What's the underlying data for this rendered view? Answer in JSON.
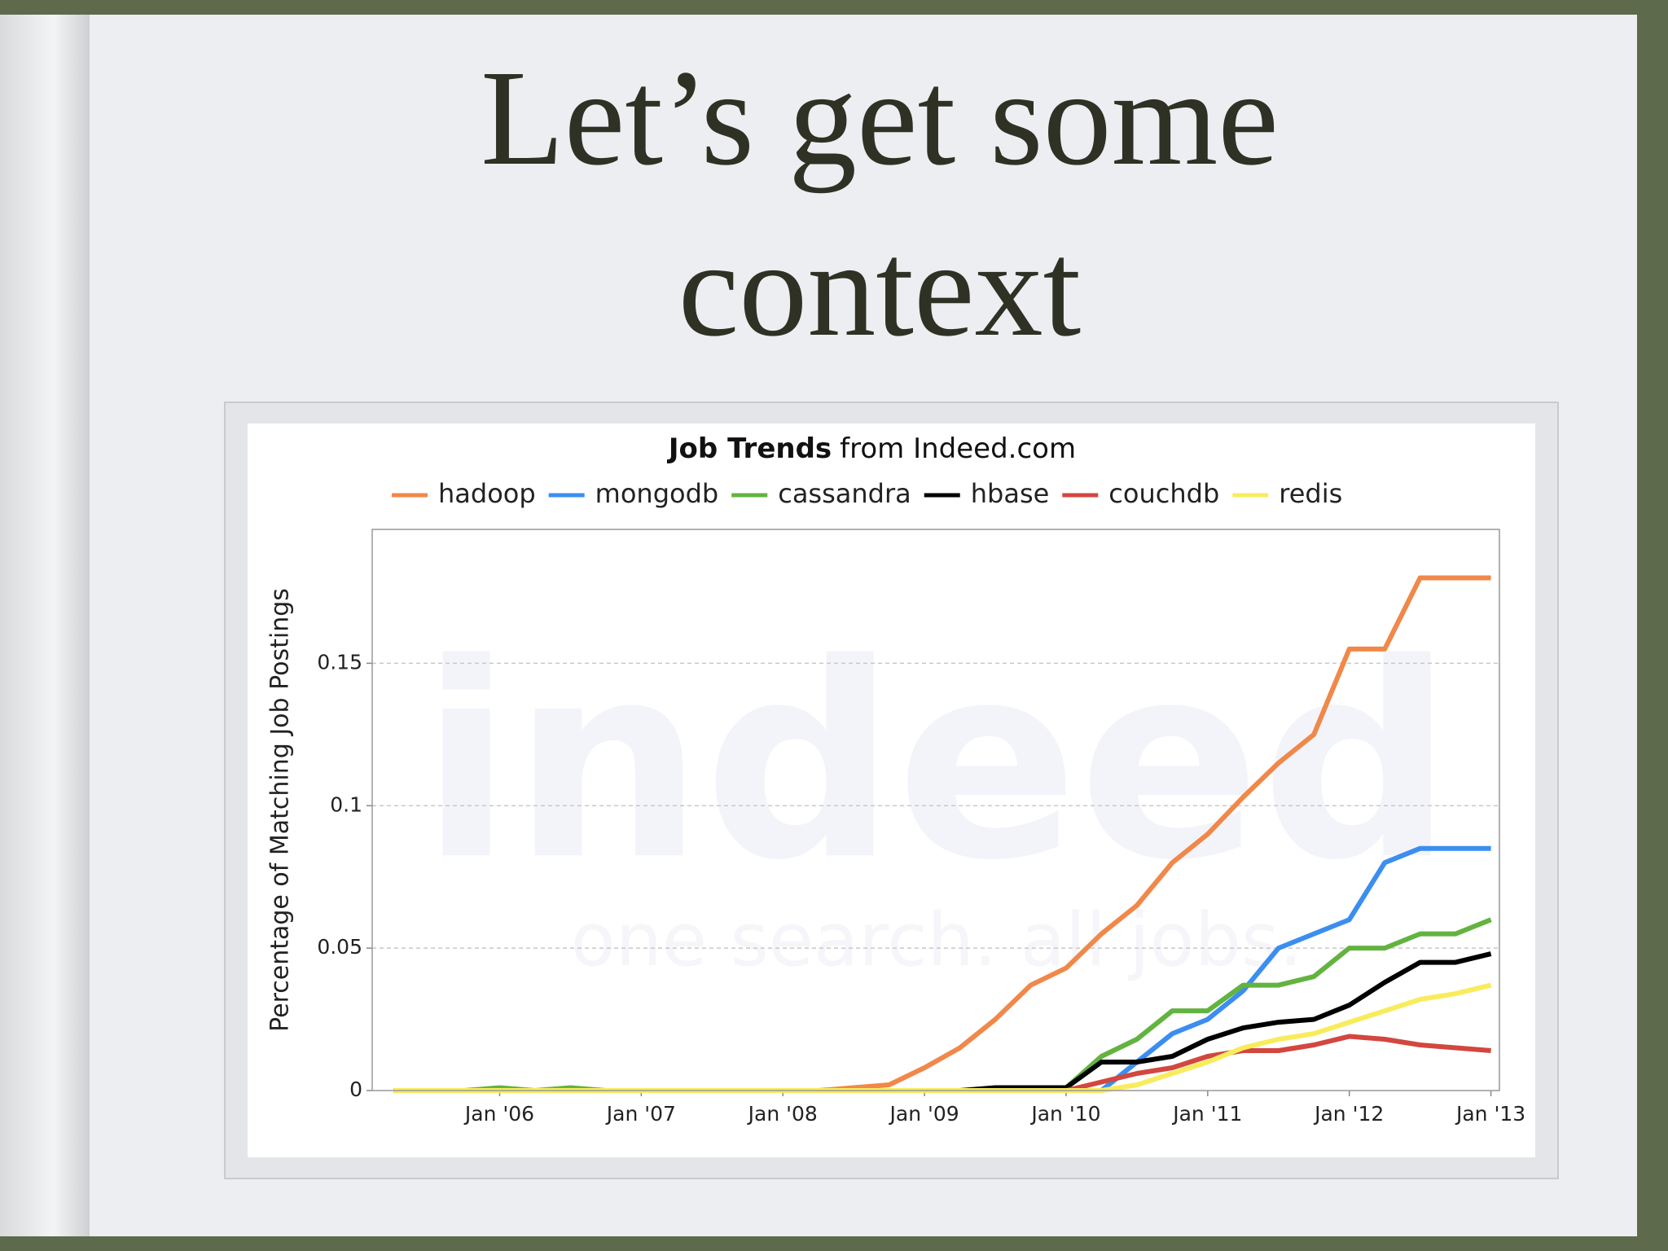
{
  "slide_title": "Let’s get some context",
  "chart_data": {
    "type": "line",
    "title": "Job Trends",
    "title_source": "from Indeed.com",
    "watermark": "indeed",
    "watermark_tagline": "one search. all jobs.",
    "y_label": "Percentage of Matching Job Postings",
    "x": [
      2005.25,
      2005.5,
      2005.75,
      2006.0,
      2006.25,
      2006.5,
      2006.75,
      2007.0,
      2007.25,
      2007.5,
      2007.75,
      2008.0,
      2008.25,
      2008.5,
      2008.75,
      2009.0,
      2009.25,
      2009.5,
      2009.75,
      2010.0,
      2010.25,
      2010.5,
      2010.75,
      2011.0,
      2011.25,
      2011.5,
      2011.75,
      2012.0,
      2012.25,
      2012.5,
      2012.75,
      2013.0
    ],
    "series": [
      {
        "name": "hadoop",
        "color": "#f0884a",
        "values": [
          0,
          0,
          0,
          0,
          0,
          0,
          0,
          0,
          0,
          0,
          0,
          0,
          0,
          0.001,
          0.002,
          0.008,
          0.015,
          0.025,
          0.037,
          0.043,
          0.055,
          0.065,
          0.08,
          0.09,
          0.103,
          0.115,
          0.125,
          0.155,
          0.155,
          0.18,
          0.18,
          0.18
        ]
      },
      {
        "name": "mongodb",
        "color": "#3b8ef0",
        "values": [
          0,
          0,
          0,
          0,
          0,
          0,
          0,
          0,
          0,
          0,
          0,
          0,
          0,
          0,
          0,
          0,
          0,
          0,
          0,
          0,
          0,
          0.01,
          0.02,
          0.025,
          0.035,
          0.05,
          0.055,
          0.06,
          0.08,
          0.085,
          0.085,
          0.085
        ]
      },
      {
        "name": "cassandra",
        "color": "#62b340",
        "values": [
          0,
          0,
          0,
          0.001,
          0,
          0.001,
          0,
          0,
          0,
          0,
          0,
          0,
          0,
          0,
          0,
          0,
          0,
          0,
          0,
          0.001,
          0.012,
          0.018,
          0.028,
          0.028,
          0.037,
          0.037,
          0.04,
          0.05,
          0.05,
          0.055,
          0.055,
          0.06
        ]
      },
      {
        "name": "hbase",
        "color": "#000000",
        "values": [
          0,
          0,
          0,
          0,
          0,
          0,
          0,
          0,
          0,
          0,
          0,
          0,
          0,
          0,
          0,
          0,
          0,
          0.001,
          0.001,
          0.001,
          0.01,
          0.01,
          0.012,
          0.018,
          0.022,
          0.024,
          0.025,
          0.03,
          0.038,
          0.045,
          0.045,
          0.048
        ]
      },
      {
        "name": "couchdb",
        "color": "#d2473f",
        "values": [
          0,
          0,
          0,
          0,
          0,
          0,
          0,
          0,
          0,
          0,
          0,
          0,
          0,
          0,
          0,
          0,
          0,
          0,
          0,
          0,
          0.003,
          0.006,
          0.008,
          0.012,
          0.014,
          0.014,
          0.016,
          0.019,
          0.018,
          0.016,
          0.015,
          0.014
        ]
      },
      {
        "name": "redis",
        "color": "#f8ec5c",
        "values": [
          0,
          0,
          0,
          0,
          0,
          0,
          0,
          0,
          0,
          0,
          0,
          0,
          0,
          0,
          0,
          0,
          0,
          0,
          0,
          0,
          0,
          0.002,
          0.006,
          0.01,
          0.015,
          0.018,
          0.02,
          0.024,
          0.028,
          0.032,
          0.034,
          0.037
        ]
      }
    ],
    "xlim": [
      2005.1,
      2013.06
    ],
    "xticks": [
      {
        "value": 2006,
        "label": "Jan '06"
      },
      {
        "value": 2007,
        "label": "Jan '07"
      },
      {
        "value": 2008,
        "label": "Jan '08"
      },
      {
        "value": 2009,
        "label": "Jan '09"
      },
      {
        "value": 2010,
        "label": "Jan '10"
      },
      {
        "value": 2011,
        "label": "Jan '11"
      },
      {
        "value": 2012,
        "label": "Jan '12"
      },
      {
        "value": 2013,
        "label": "Jan '13"
      }
    ],
    "ylim": [
      0,
      0.197
    ],
    "yticks": [
      0,
      0.05,
      0.1,
      0.15
    ],
    "grid": true
  }
}
